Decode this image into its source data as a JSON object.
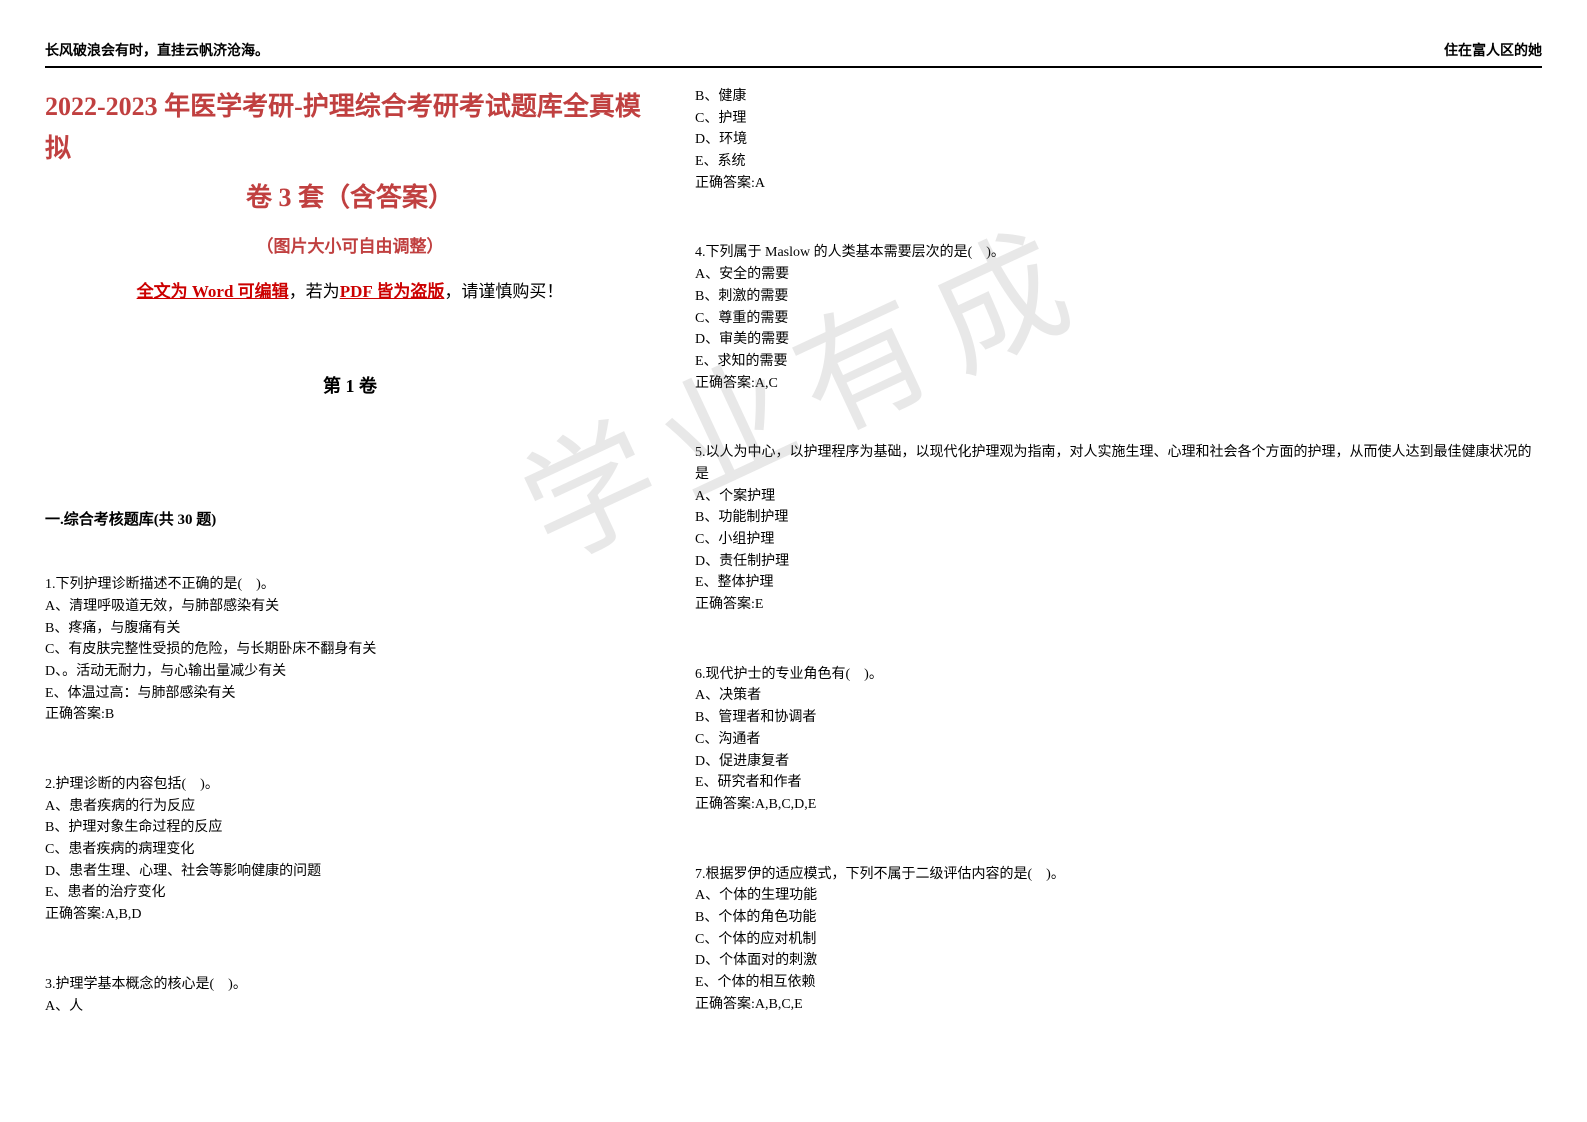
{
  "header": {
    "left": "长风破浪会有时，直挂云帆济沧海。",
    "right": "住在富人区的她"
  },
  "title": "2022-2023 年医学考研-护理综合考研考试题库全真模拟",
  "subtitle": "卷 3 套（含答案）",
  "note": "（图片大小可自由调整）",
  "editable": {
    "part1": "全文为 Word 可编辑",
    "part2": "，若为",
    "part3": "PDF 皆为盗版",
    "part4": "，请谨慎购买！"
  },
  "volume": "第 1 卷",
  "section": "一.综合考核题库(共 30 题)",
  "watermark": "学业有成",
  "questions": {
    "q1": {
      "text": "1.下列护理诊断描述不正确的是(　)。",
      "a": "A、清理呼吸道无效，与肺部感染有关",
      "b": "B、疼痛，与腹痛有关",
      "c": "C、有皮肤完整性受损的危险，与长期卧床不翻身有关",
      "d": "D、。活动无耐力，与心输出量减少有关",
      "e": "E、体温过高：与肺部感染有关",
      "answer": "正确答案:B"
    },
    "q2": {
      "text": "2.护理诊断的内容包括(　)。",
      "a": "A、患者疾病的行为反应",
      "b": "B、护理对象生命过程的反应",
      "c": "C、患者疾病的病理变化",
      "d": "D、患者生理、心理、社会等影响健康的问题",
      "e": "E、患者的治疗变化",
      "answer": "正确答案:A,B,D"
    },
    "q3": {
      "text": "3.护理学基本概念的核心是(　)。",
      "a": "A、人",
      "b": "B、健康",
      "c": "C、护理",
      "d": "D、环境",
      "e": "E、系统",
      "answer": "正确答案:A"
    },
    "q4": {
      "text": "4.下列属于 Maslow 的人类基本需要层次的是(　)。",
      "a": "A、安全的需要",
      "b": "B、刺激的需要",
      "c": "C、尊重的需要",
      "d": "D、审美的需要",
      "e": "E、求知的需要",
      "answer": "正确答案:A,C"
    },
    "q5": {
      "text": "5.以人为中心，以护理程序为基础，以现代化护理观为指南，对人实施生理、心理和社会各个方面的护理，从而使人达到最佳健康状况的是",
      "a": "A、个案护理",
      "b": "B、功能制护理",
      "c": "C、小组护理",
      "d": "D、责任制护理",
      "e": "E、整体护理",
      "answer": "正确答案:E"
    },
    "q6": {
      "text": "6.现代护士的专业角色有(　)。",
      "a": "A、决策者",
      "b": "B、管理者和协调者",
      "c": "C、沟通者",
      "d": "D、促进康复者",
      "e": "E、研究者和作者",
      "answer": "正确答案:A,B,C,D,E"
    },
    "q7": {
      "text": "7.根据罗伊的适应模式，下列不属于二级评估内容的是(　)。",
      "a": "A、个体的生理功能",
      "b": "B、个体的角色功能",
      "c": "C、个体的应对机制",
      "d": "D、个体面对的刺激",
      "e": "E、个体的相互依赖",
      "answer": "正确答案:A,B,C,E"
    }
  }
}
